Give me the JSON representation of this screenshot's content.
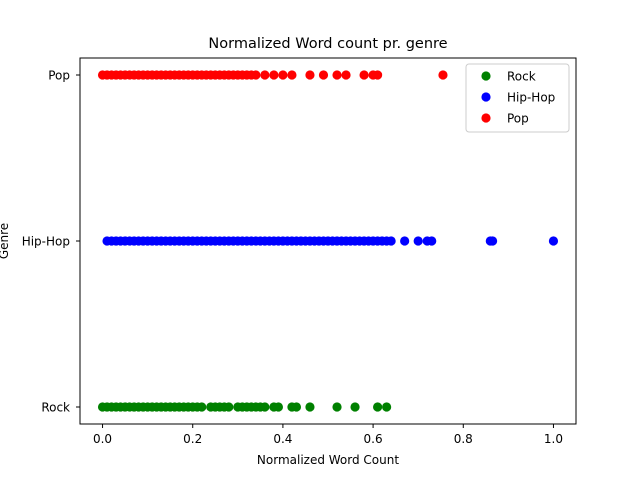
{
  "chart_data": {
    "type": "scatter",
    "title": "Normalized Word count pr. genre",
    "xlabel": "Normalized Word Count",
    "ylabel": "Genre",
    "xlim": [
      -0.05,
      1.05
    ],
    "x_ticks": [
      0.0,
      0.2,
      0.4,
      0.6,
      0.8,
      1.0
    ],
    "x_tick_labels": [
      "0.0",
      "0.2",
      "0.4",
      "0.6",
      "0.8",
      "1.0"
    ],
    "categories": [
      "Rock",
      "Hip-Hop",
      "Pop"
    ],
    "grid": false,
    "legend_position": "top-right",
    "series": [
      {
        "name": "Rock",
        "category": "Rock",
        "color": "#008000",
        "x": [
          0.0,
          0.01,
          0.02,
          0.03,
          0.04,
          0.05,
          0.06,
          0.07,
          0.08,
          0.09,
          0.1,
          0.11,
          0.12,
          0.13,
          0.14,
          0.15,
          0.16,
          0.17,
          0.18,
          0.19,
          0.2,
          0.21,
          0.22,
          0.24,
          0.25,
          0.26,
          0.27,
          0.28,
          0.3,
          0.31,
          0.32,
          0.33,
          0.34,
          0.35,
          0.36,
          0.38,
          0.39,
          0.42,
          0.43,
          0.46,
          0.52,
          0.56,
          0.61,
          0.63
        ]
      },
      {
        "name": "Hip-Hop",
        "category": "Hip-Hop",
        "color": "#0000ff",
        "x": [
          0.01,
          0.02,
          0.03,
          0.04,
          0.05,
          0.06,
          0.07,
          0.08,
          0.09,
          0.1,
          0.11,
          0.12,
          0.13,
          0.14,
          0.15,
          0.16,
          0.17,
          0.18,
          0.19,
          0.2,
          0.21,
          0.22,
          0.23,
          0.24,
          0.25,
          0.26,
          0.27,
          0.28,
          0.29,
          0.3,
          0.31,
          0.32,
          0.33,
          0.34,
          0.35,
          0.36,
          0.37,
          0.38,
          0.39,
          0.4,
          0.41,
          0.42,
          0.43,
          0.44,
          0.45,
          0.46,
          0.47,
          0.48,
          0.49,
          0.5,
          0.51,
          0.52,
          0.53,
          0.54,
          0.55,
          0.56,
          0.57,
          0.58,
          0.59,
          0.6,
          0.61,
          0.62,
          0.63,
          0.64,
          0.67,
          0.7,
          0.72,
          0.73,
          0.86,
          0.865,
          1.0
        ]
      },
      {
        "name": "Pop",
        "category": "Pop",
        "color": "#ff0000",
        "x": [
          0.0,
          0.01,
          0.02,
          0.03,
          0.04,
          0.05,
          0.06,
          0.07,
          0.08,
          0.09,
          0.1,
          0.11,
          0.12,
          0.13,
          0.14,
          0.15,
          0.16,
          0.17,
          0.18,
          0.19,
          0.2,
          0.21,
          0.22,
          0.23,
          0.24,
          0.25,
          0.26,
          0.27,
          0.28,
          0.29,
          0.3,
          0.31,
          0.32,
          0.33,
          0.34,
          0.36,
          0.38,
          0.4,
          0.42,
          0.46,
          0.49,
          0.52,
          0.54,
          0.58,
          0.6,
          0.61,
          0.755
        ]
      }
    ]
  }
}
